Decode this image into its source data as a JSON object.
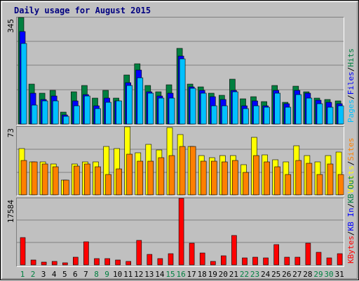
{
  "window": {
    "title": "Daily usage for August 2015"
  },
  "chart_data": [
    {
      "type": "bar",
      "title": "Daily usage for August 2015",
      "panel": "requests",
      "ymax_label": "345",
      "ylim": [
        0,
        345
      ],
      "grid": true,
      "legend_placement": "right (vertical)",
      "legend": [
        {
          "name": "Pages",
          "color": "#00c0ff"
        },
        {
          "name": "/",
          "color": "#000000"
        },
        {
          "name": "Files",
          "color": "#0000ff"
        },
        {
          "name": "/",
          "color": "#000000"
        },
        {
          "name": "Hits",
          "color": "#008040"
        }
      ],
      "categories": [
        "1",
        "2",
        "3",
        "4",
        "5",
        "6",
        "7",
        "8",
        "9",
        "10",
        "11",
        "12",
        "13",
        "14",
        "15",
        "16",
        "17",
        "18",
        "19",
        "20",
        "21",
        "22",
        "23",
        "24",
        "25",
        "26",
        "27",
        "28",
        "29",
        "30",
        "31"
      ],
      "weekend_days": [
        "1",
        "2",
        "8",
        "9",
        "15",
        "16",
        "22",
        "23",
        "29",
        "30"
      ],
      "series": [
        {
          "name": "Hits",
          "color": "#008040",
          "values": [
            345,
            130,
            100,
            110,
            38,
            105,
            125,
            85,
            110,
            85,
            158,
            195,
            125,
            105,
            128,
            245,
            130,
            120,
            100,
            92,
            145,
            82,
            88,
            72,
            125,
            70,
            122,
            105,
            85,
            80,
            75
          ]
        },
        {
          "name": "Files",
          "color": "#0000ff",
          "values": [
            300,
            100,
            80,
            90,
            30,
            75,
            95,
            60,
            85,
            75,
            135,
            175,
            105,
            90,
            100,
            220,
            120,
            110,
            88,
            80,
            110,
            60,
            75,
            60,
            110,
            65,
            110,
            100,
            78,
            70,
            65
          ]
        },
        {
          "name": "Pages",
          "color": "#00c0ff",
          "values": [
            260,
            62,
            75,
            75,
            25,
            58,
            90,
            50,
            70,
            75,
            125,
            150,
            100,
            85,
            85,
            210,
            115,
            100,
            60,
            60,
            105,
            50,
            60,
            55,
            100,
            55,
            95,
            85,
            65,
            55,
            60
          ]
        }
      ]
    },
    {
      "type": "bar",
      "panel": "visits",
      "ymax_label": "73",
      "ylim": [
        0,
        73
      ],
      "grid": true,
      "legend": [
        {
          "name": "Visits",
          "color": "#ffff00"
        },
        {
          "name": "/",
          "color": "#000000"
        },
        {
          "name": "Sites",
          "color": "#ff8000"
        }
      ],
      "categories": [
        "1",
        "2",
        "3",
        "4",
        "5",
        "6",
        "7",
        "8",
        "9",
        "10",
        "11",
        "12",
        "13",
        "14",
        "15",
        "16",
        "17",
        "18",
        "19",
        "20",
        "21",
        "22",
        "23",
        "24",
        "25",
        "26",
        "27",
        "28",
        "29",
        "30",
        "31"
      ],
      "series": [
        {
          "name": "Visits",
          "color": "#ffff00",
          "values": [
            50,
            35,
            35,
            33,
            16,
            33,
            35,
            35,
            52,
            50,
            73,
            45,
            54,
            48,
            72,
            65,
            52,
            42,
            40,
            42,
            42,
            32,
            62,
            43,
            38,
            35,
            53,
            42,
            35,
            42,
            46
          ]
        },
        {
          "name": "Sites",
          "color": "#ff8000",
          "values": [
            37,
            35,
            33,
            30,
            16,
            31,
            33,
            30,
            22,
            28,
            44,
            36,
            36,
            40,
            42,
            52,
            52,
            36,
            36,
            35,
            37,
            24,
            42,
            35,
            30,
            22,
            37,
            34,
            22,
            33,
            22
          ]
        }
      ]
    },
    {
      "type": "bar",
      "panel": "kbytes",
      "ymax_label": "17584",
      "ylim": [
        0,
        17584
      ],
      "grid": true,
      "legend": [
        {
          "name": "KBytes",
          "color": "#ff0000"
        },
        {
          "name": "/",
          "color": "#000000"
        },
        {
          "name": "KB In",
          "color": "#0000ff"
        },
        {
          "name": "/",
          "color": "#000000"
        },
        {
          "name": "KB Out",
          "color": "#008040"
        }
      ],
      "categories": [
        "1",
        "2",
        "3",
        "4",
        "5",
        "6",
        "7",
        "8",
        "9",
        "10",
        "11",
        "12",
        "13",
        "14",
        "15",
        "16",
        "17",
        "18",
        "19",
        "20",
        "21",
        "22",
        "23",
        "24",
        "25",
        "26",
        "27",
        "28",
        "29",
        "30",
        "31"
      ],
      "series": [
        {
          "name": "KBytes",
          "color": "#ff0000",
          "values": [
            7200,
            1300,
            700,
            900,
            600,
            2000,
            6100,
            1600,
            1600,
            1300,
            1000,
            6500,
            2700,
            1600,
            3000,
            17584,
            5800,
            3200,
            1000,
            2400,
            7700,
            1800,
            2100,
            1900,
            5400,
            2100,
            2100,
            5800,
            3300,
            1900,
            3000
          ]
        }
      ]
    }
  ]
}
